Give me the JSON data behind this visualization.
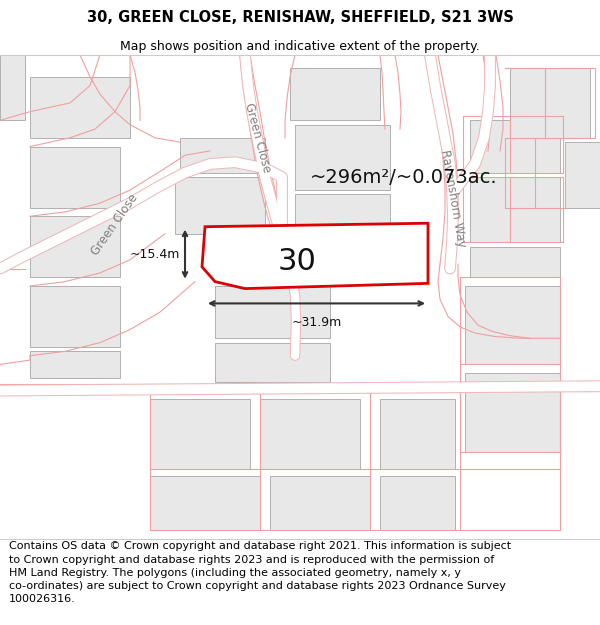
{
  "title_line1": "30, GREEN CLOSE, RENISHAW, SHEFFIELD, S21 3WS",
  "title_line2": "Map shows position and indicative extent of the property.",
  "footer_text": "Contains OS data © Crown copyright and database right 2021. This information is subject\nto Crown copyright and database rights 2023 and is reproduced with the permission of\nHM Land Registry. The polygons (including the associated geometry, namely x, y\nco-ordinates) are subject to Crown copyright and database rights 2023 Ordnance Survey\n100026316.",
  "map_bg": "#ffffff",
  "parcel_fill": "#e8e8e8",
  "parcel_stroke": "#b0b0b0",
  "road_outline_color": "#f0b8b8",
  "road_fill_color": "#ffffff",
  "highlight_fill": "#ffffff",
  "highlight_stroke": "#dd0000",
  "area_label": "~296m²/~0.073ac.",
  "number_label": "30",
  "dim_width": "~31.9m",
  "dim_height": "~15.4m",
  "road_label_green_close_upper": "Green Close",
  "road_label_green_close_lower": "Green Close",
  "road_label_ravenshorn": "Ravenshorn Way",
  "title_fontsize": 10.5,
  "subtitle_fontsize": 9,
  "footer_fontsize": 8,
  "area_label_fontsize": 14,
  "number_label_fontsize": 22,
  "dim_fontsize": 9,
  "road_label_fontsize": 8.5
}
